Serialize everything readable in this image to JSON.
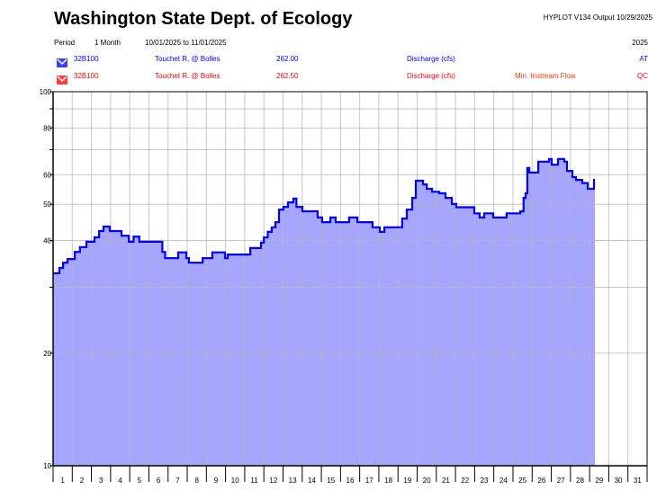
{
  "header": {
    "title": "Washington State Dept. of Ecology",
    "software": "HYPLOT V134  Output 10/29/2025",
    "period_label": "Period",
    "period_value": "1 Month",
    "date_range": "10/01/2025  to  11/01/2025",
    "year": "2025"
  },
  "legend": [
    {
      "icon": "hydrograph-marker-icon",
      "color": "#0000ff",
      "station": "32B100",
      "site": "Touchet R. @ Bolles",
      "variable_code": "262.00",
      "parameter": "Discharge (cfs)",
      "note": "",
      "flag": "AT"
    },
    {
      "icon": "hydrograph-marker-icon",
      "color": "#ff0000",
      "station": "32B100",
      "site": "Touchet R. @ Bolles",
      "variable_code": "262.50",
      "parameter": "Discharge (cfs)",
      "note": "Min. Instream Flow",
      "flag": "QC"
    }
  ],
  "chart_data": {
    "type": "area",
    "y_scale": "log",
    "ylim": [
      10,
      100
    ],
    "xlim": [
      1,
      32
    ],
    "y_tick_labels": [
      "10",
      "20",
      "40",
      "50",
      "60",
      "80",
      "100"
    ],
    "y_ticks": [
      10,
      20,
      40,
      50,
      60,
      80,
      100
    ],
    "y_gridlines": [
      20,
      30,
      40,
      50,
      60,
      70,
      80,
      90
    ],
    "x_tick_labels": [
      "1",
      "2",
      "3",
      "4",
      "5",
      "6",
      "7",
      "8",
      "9",
      "10",
      "11",
      "12",
      "13",
      "14",
      "15",
      "16",
      "17",
      "18",
      "19",
      "20",
      "21",
      "22",
      "23",
      "24",
      "25",
      "26",
      "27",
      "28",
      "29",
      "30",
      "31"
    ],
    "grid": true,
    "line_color": "#0000ff",
    "fill_color": "#a6a6ff",
    "series": [
      {
        "step": true,
        "points": [
          [
            1.0,
            32.7
          ],
          [
            1.33,
            33.8
          ],
          [
            1.52,
            34.9
          ],
          [
            1.75,
            35.7
          ],
          [
            2.13,
            37.3
          ],
          [
            2.4,
            38.4
          ],
          [
            2.74,
            39.7
          ],
          [
            3.16,
            40.8
          ],
          [
            3.4,
            42.4
          ],
          [
            3.63,
            43.6
          ],
          [
            3.96,
            42.4
          ],
          [
            4.57,
            41.2
          ],
          [
            4.95,
            39.7
          ],
          [
            5.2,
            41.0
          ],
          [
            5.5,
            39.7
          ],
          [
            6.7,
            37.3
          ],
          [
            6.85,
            35.9
          ],
          [
            7.53,
            37.2
          ],
          [
            7.95,
            35.9
          ],
          [
            8.09,
            34.9
          ],
          [
            8.8,
            35.9
          ],
          [
            9.31,
            37.2
          ],
          [
            9.97,
            35.9
          ],
          [
            10.11,
            36.7
          ],
          [
            11.29,
            38.2
          ],
          [
            11.85,
            39.5
          ],
          [
            12.0,
            40.8
          ],
          [
            12.2,
            42.2
          ],
          [
            12.41,
            43.4
          ],
          [
            12.6,
            44.8
          ],
          [
            12.79,
            48.4
          ],
          [
            13.02,
            49.2
          ],
          [
            13.26,
            50.6
          ],
          [
            13.54,
            51.8
          ],
          [
            13.7,
            49.2
          ],
          [
            14.01,
            47.9
          ],
          [
            14.81,
            46.1
          ],
          [
            15.04,
            44.8
          ],
          [
            15.47,
            46.1
          ],
          [
            15.75,
            44.8
          ],
          [
            16.45,
            46.1
          ],
          [
            16.88,
            44.8
          ],
          [
            17.67,
            43.4
          ],
          [
            18.05,
            42.2
          ],
          [
            18.29,
            43.4
          ],
          [
            19.22,
            45.8
          ],
          [
            19.46,
            48.4
          ],
          [
            19.74,
            52.0
          ],
          [
            19.93,
            57.8
          ],
          [
            20.31,
            56.5
          ],
          [
            20.5,
            55.0
          ],
          [
            20.78,
            54.0
          ],
          [
            21.15,
            53.5
          ],
          [
            21.48,
            52.0
          ],
          [
            21.81,
            50.1
          ],
          [
            22.04,
            49.1
          ],
          [
            22.98,
            47.3
          ],
          [
            23.26,
            46.1
          ],
          [
            23.5,
            47.3
          ],
          [
            23.97,
            46.1
          ],
          [
            24.67,
            47.3
          ],
          [
            25.38,
            47.9
          ],
          [
            25.55,
            52.0
          ],
          [
            25.66,
            53.5
          ],
          [
            25.75,
            62.5
          ],
          [
            25.85,
            60.8
          ],
          [
            26.32,
            65.0
          ],
          [
            26.88,
            66.1
          ],
          [
            27.02,
            63.8
          ],
          [
            27.35,
            66.1
          ],
          [
            27.68,
            65.0
          ],
          [
            27.82,
            61.4
          ],
          [
            28.1,
            59.1
          ],
          [
            28.29,
            58.1
          ],
          [
            28.62,
            57.0
          ],
          [
            28.9,
            55.0
          ],
          [
            29.23,
            58.1
          ],
          [
            29.28,
            58.1
          ]
        ]
      }
    ]
  }
}
